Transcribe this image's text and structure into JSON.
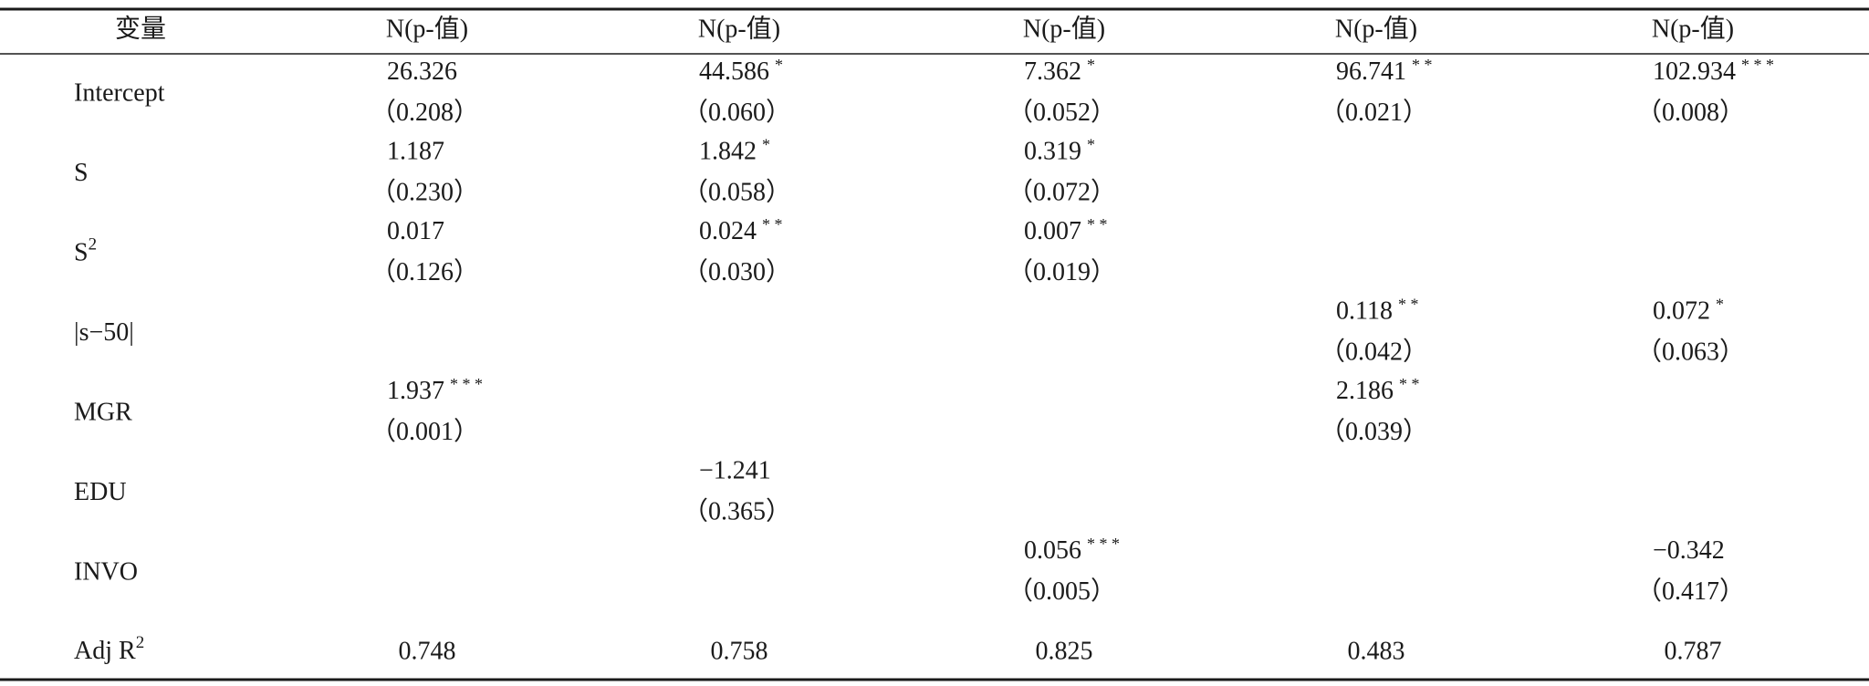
{
  "table": {
    "header": [
      "变量",
      "N(p-值)",
      "N(p-值)",
      "N(p-值)",
      "N(p-值)",
      "N(p-值)"
    ],
    "rows": [
      {
        "label": "Intercept",
        "cells": [
          {
            "coef": "26.326",
            "p": "（0.208）"
          },
          {
            "coef": "44.586",
            "stars": "*",
            "p": "（0.060）"
          },
          {
            "coef": "7.362",
            "stars": "*",
            "p": "（0.052）"
          },
          {
            "coef": "96.741",
            "stars": "* *",
            "p": "（0.021）"
          },
          {
            "coef": "102.934",
            "stars": "* * *",
            "p": "（0.008）"
          }
        ]
      },
      {
        "label": "S",
        "cells": [
          {
            "coef": "1.187",
            "p": "（0.230）"
          },
          {
            "coef": "1.842",
            "stars": "*",
            "p": "（0.058）"
          },
          {
            "coef": "0.319",
            "stars": "*",
            "p": "（0.072）"
          },
          null,
          null
        ]
      },
      {
        "label": "S",
        "label_sup": "2",
        "cells": [
          {
            "coef": "0.017",
            "p": "（0.126）"
          },
          {
            "coef": "0.024",
            "stars": "* *",
            "p": "（0.030）"
          },
          {
            "coef": "0.007",
            "stars": "* *",
            "p": "（0.019）"
          },
          null,
          null
        ]
      },
      {
        "label": "|s−50|",
        "cells": [
          null,
          null,
          null,
          {
            "coef": "0.118",
            "stars": "* *",
            "p": "（0.042）"
          },
          {
            "coef": "0.072",
            "stars": "*",
            "p": "（0.063）"
          }
        ]
      },
      {
        "label": "MGR",
        "cells": [
          {
            "coef": "1.937",
            "stars": "* * *",
            "p": "（0.001）"
          },
          null,
          null,
          {
            "coef": "2.186",
            "stars": "* *",
            "p": "（0.039）"
          },
          null
        ]
      },
      {
        "label": "EDU",
        "cells": [
          null,
          {
            "coef": "−1.241",
            "p": "（0.365）"
          },
          null,
          null,
          null
        ]
      },
      {
        "label": "INVO",
        "cells": [
          null,
          null,
          {
            "coef": "0.056",
            "stars": "* * *",
            "p": "（0.005）"
          },
          null,
          {
            "coef": "−0.342",
            "p": "（0.417）"
          }
        ]
      },
      {
        "label": "Adj R",
        "label_sup": "2",
        "cells": [
          {
            "coef": "0.748"
          },
          {
            "coef": "0.758"
          },
          {
            "coef": "0.825"
          },
          {
            "coef": "0.483"
          },
          {
            "coef": "0.787"
          }
        ]
      }
    ]
  }
}
